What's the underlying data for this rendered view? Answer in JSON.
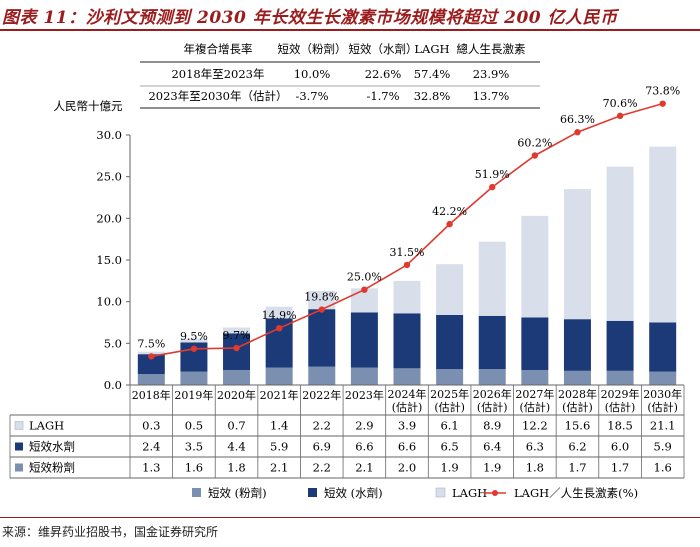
{
  "title": "图表 11：沙利文预测到 2030 年长效生长激素市场规模将超过 200 亿人民币",
  "source": "来源：维昇药业招股书，国金证券研究所",
  "cagr_table": {
    "header": [
      "年複合增長率",
      "短效（粉劑）",
      "短效（水劑）",
      "LAGH",
      "總人生長激素"
    ],
    "rows": [
      [
        "2018年至2023年",
        "10.0%",
        "22.6%",
        "57.4%",
        "23.9%"
      ],
      [
        "2023年至2030年（估計）",
        "-3.7%",
        "-1.7%",
        "32.8%",
        "13.7%"
      ]
    ]
  },
  "colors": {
    "powder": "#7b8fb0",
    "water": "#1d3a78",
    "lagh": "#d8dfea",
    "line": "#e03a2f",
    "title": "#9b1c1c"
  },
  "chart_data": {
    "type": "bar",
    "stacked": true,
    "ylabel": "人民幣十億元",
    "ylim": [
      0,
      30
    ],
    "yticks": [
      "0.0",
      "5.0",
      "10.0",
      "15.0",
      "20.0",
      "25.0",
      "30.0"
    ],
    "categories": [
      [
        "2018年"
      ],
      [
        "2019年"
      ],
      [
        "2020年"
      ],
      [
        "2021年"
      ],
      [
        "2022年"
      ],
      [
        "2023年"
      ],
      [
        "2024年",
        "(估計)"
      ],
      [
        "2025年",
        "(估計)"
      ],
      [
        "2026年",
        "(估計)"
      ],
      [
        "2027年",
        "(估計)"
      ],
      [
        "2028年",
        "(估計)"
      ],
      [
        "2029年",
        "(估計)"
      ],
      [
        "2030年",
        "(估計)"
      ]
    ],
    "series": [
      {
        "name": "短效 (粉劑)",
        "table_label": "短效粉劑",
        "color": "#7b8fb0",
        "values": [
          1.3,
          1.6,
          1.8,
          2.1,
          2.2,
          2.1,
          2.0,
          1.9,
          1.9,
          1.8,
          1.7,
          1.7,
          1.6
        ]
      },
      {
        "name": "短效 (水劑)",
        "table_label": "短效水劑",
        "color": "#1d3a78",
        "values": [
          2.4,
          3.5,
          4.4,
          5.9,
          6.9,
          6.6,
          6.6,
          6.5,
          6.4,
          6.3,
          6.2,
          6.0,
          5.9
        ]
      },
      {
        "name": "LAGH",
        "table_label": "LAGH",
        "color": "#d8dfea",
        "values": [
          0.3,
          0.5,
          0.7,
          1.4,
          2.2,
          2.9,
          3.9,
          6.1,
          8.9,
          12.2,
          15.6,
          18.5,
          21.1
        ]
      }
    ],
    "line": {
      "name": "LAGH／人生長激素(%)",
      "color": "#e03a2f",
      "values": [
        7.5,
        9.5,
        9.7,
        14.9,
        19.8,
        25.0,
        31.5,
        42.2,
        51.9,
        60.2,
        66.3,
        70.6,
        73.8
      ],
      "labels": [
        "7.5%",
        "9.5%",
        "9.7%",
        "14.9%",
        "19.8%",
        "25.0%",
        "31.5%",
        "42.2%",
        "51.9%",
        "60.2%",
        "66.3%",
        "70.6%",
        "73.8%"
      ],
      "ylim": [
        0,
        80
      ]
    },
    "table_order": [
      2,
      1,
      0
    ],
    "legend_order": [
      0,
      1,
      2
    ],
    "legend_position": "bottom"
  }
}
